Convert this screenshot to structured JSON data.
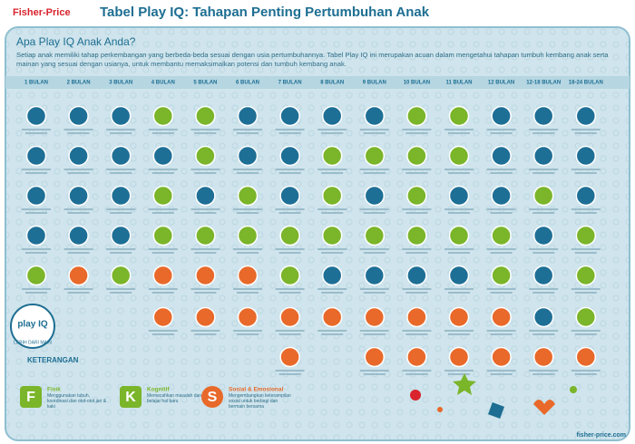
{
  "header": {
    "logo": "Fisher-Price",
    "title": "Tabel Play IQ: Tahapan Penting Pertumbuhan Anak"
  },
  "intro": {
    "heading": "Apa Play IQ Anak Anda?",
    "text": "Setiap anak memiliki tahap perkembangan yang berbeda-beda sesuai dengan usia pertumbuhannya. Tabel Play IQ ini merupakan acuan dalam mengetahui tahapan tumbuh kembang anak serta mainan yang sesuai dengan usianya, untuk membantu memaksimalkan potensi dan tumbuh kembang anak."
  },
  "columns": [
    "1 BULAN",
    "2 BULAN",
    "3 BULAN",
    "4 BULAN",
    "5 BULAN",
    "6 BULAN",
    "7 BULAN",
    "8 BULAN",
    "9 BULAN",
    "10 BULAN",
    "11 BULAN",
    "12 BULAN",
    "12-18 BULAN",
    "18-24 BULAN"
  ],
  "badge": {
    "title": "play IQ",
    "tagline": "LEBIH DARI MAIN"
  },
  "legend": {
    "title": "KETERANGAN",
    "items": [
      {
        "letter": "F",
        "name": "Fisik",
        "desc": "Menggunakan tubuh, koordinasi dan otot-otot jari & kaki"
      },
      {
        "letter": "K",
        "name": "Kognitif",
        "desc": "Memecahkan masalah dan belajar hal baru"
      },
      {
        "letter": "S",
        "name": "Sosial & Emosional",
        "desc": "Mengembangkan keterampilan sosial untuk berbagi dan bermain bersama"
      }
    ]
  },
  "footer": {
    "url": "fisher-price.com"
  }
}
